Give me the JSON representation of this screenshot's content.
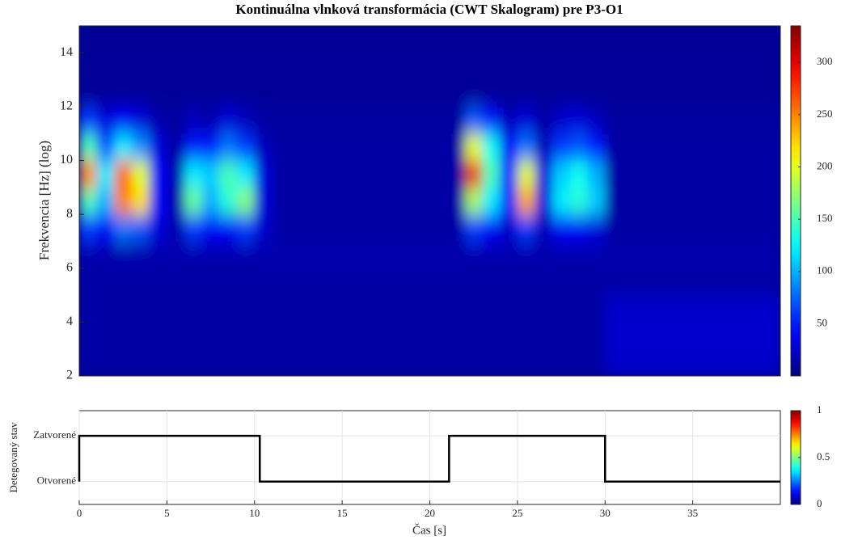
{
  "chart_data": [
    {
      "type": "heatmap",
      "title": "Kontinuálna vlnková transformácia (CWT Skalogram) pre P3-O1",
      "ylabel": "Frekvencia [Hz] (log)",
      "xbins": [
        0,
        1,
        2,
        3,
        4,
        5,
        6,
        7,
        8,
        9,
        10,
        11,
        12,
        13,
        14,
        15,
        16,
        17,
        18,
        19,
        20,
        21,
        22,
        23,
        24,
        25,
        26,
        27,
        28,
        29,
        30,
        31,
        32,
        33,
        34,
        35,
        36,
        37,
        38,
        39,
        40
      ],
      "ybins": [
        2,
        3,
        4,
        5,
        6,
        7,
        8,
        9,
        10,
        11,
        12,
        13,
        14,
        15
      ],
      "z": [
        [
          12,
          12,
          12,
          12,
          12,
          12,
          12,
          12,
          12,
          12,
          12,
          12,
          12,
          12,
          12,
          12,
          12,
          12,
          12,
          12,
          12,
          12,
          12,
          12,
          12,
          12,
          12,
          12,
          12,
          12,
          25,
          25,
          25,
          25,
          25,
          25,
          25,
          25,
          25,
          25
        ],
        [
          12,
          12,
          12,
          12,
          12,
          12,
          12,
          12,
          12,
          12,
          12,
          12,
          12,
          12,
          12,
          12,
          12,
          12,
          12,
          12,
          12,
          12,
          12,
          12,
          12,
          12,
          12,
          12,
          12,
          12,
          25,
          25,
          25,
          25,
          25,
          25,
          25,
          25,
          25,
          25
        ],
        [
          12,
          12,
          12,
          12,
          12,
          12,
          12,
          12,
          12,
          12,
          12,
          12,
          12,
          12,
          12,
          12,
          12,
          12,
          12,
          12,
          12,
          12,
          12,
          12,
          12,
          12,
          12,
          12,
          12,
          12,
          25,
          25,
          25,
          25,
          25,
          25,
          25,
          25,
          25,
          25
        ],
        [
          12,
          12,
          12,
          12,
          12,
          12,
          12,
          12,
          12,
          12,
          12,
          12,
          12,
          12,
          12,
          12,
          12,
          12,
          12,
          12,
          12,
          12,
          12,
          12,
          12,
          12,
          12,
          12,
          12,
          12,
          12,
          12,
          12,
          12,
          12,
          12,
          12,
          12,
          12,
          12
        ],
        [
          15,
          15,
          15,
          15,
          15,
          15,
          15,
          15,
          15,
          15,
          15,
          15,
          15,
          15,
          15,
          15,
          15,
          15,
          15,
          15,
          15,
          15,
          15,
          15,
          15,
          15,
          15,
          15,
          15,
          15,
          15,
          15,
          15,
          15,
          15,
          15,
          15,
          15,
          15,
          15
        ],
        [
          60,
          40,
          80,
          70,
          30,
          15,
          60,
          40,
          40,
          60,
          25,
          12,
          12,
          12,
          12,
          12,
          12,
          12,
          12,
          12,
          12,
          12,
          60,
          40,
          25,
          60,
          20,
          40,
          40,
          30,
          12,
          12,
          12,
          12,
          12,
          12,
          12,
          12,
          12,
          12
        ],
        [
          150,
          100,
          250,
          220,
          40,
          15,
          160,
          100,
          140,
          170,
          30,
          12,
          12,
          12,
          12,
          12,
          12,
          12,
          12,
          12,
          12,
          12,
          180,
          120,
          50,
          240,
          30,
          120,
          140,
          110,
          12,
          12,
          12,
          12,
          12,
          12,
          12,
          12,
          12,
          12
        ],
        [
          250,
          120,
          260,
          200,
          40,
          15,
          120,
          110,
          150,
          120,
          30,
          12,
          12,
          12,
          12,
          12,
          12,
          12,
          12,
          12,
          12,
          12,
          300,
          150,
          50,
          200,
          30,
          110,
          130,
          100,
          12,
          12,
          12,
          12,
          12,
          12,
          12,
          12,
          12,
          12
        ],
        [
          150,
          70,
          120,
          90,
          30,
          12,
          50,
          50,
          80,
          60,
          20,
          12,
          12,
          12,
          12,
          12,
          12,
          12,
          12,
          12,
          12,
          12,
          200,
          130,
          40,
          80,
          20,
          60,
          70,
          50,
          12,
          12,
          12,
          12,
          12,
          12,
          12,
          12,
          12,
          12
        ],
        [
          60,
          30,
          40,
          30,
          15,
          10,
          20,
          15,
          30,
          20,
          12,
          10,
          10,
          10,
          10,
          10,
          10,
          10,
          10,
          10,
          10,
          10,
          70,
          50,
          20,
          30,
          12,
          25,
          30,
          20,
          10,
          10,
          10,
          10,
          10,
          10,
          10,
          10,
          10,
          10
        ],
        [
          8,
          8,
          8,
          8,
          8,
          8,
          8,
          8,
          8,
          8,
          8,
          8,
          8,
          8,
          8,
          8,
          8,
          8,
          8,
          8,
          8,
          8,
          8,
          8,
          8,
          8,
          8,
          8,
          8,
          8,
          8,
          8,
          8,
          8,
          8,
          8,
          8,
          8,
          8,
          8
        ],
        [
          8,
          8,
          8,
          8,
          8,
          8,
          8,
          8,
          8,
          8,
          8,
          8,
          8,
          8,
          8,
          8,
          8,
          8,
          8,
          8,
          8,
          8,
          8,
          8,
          8,
          8,
          8,
          8,
          8,
          8,
          8,
          8,
          8,
          8,
          8,
          8,
          8,
          8,
          8,
          8
        ],
        [
          8,
          8,
          8,
          8,
          8,
          8,
          8,
          8,
          8,
          8,
          8,
          8,
          8,
          8,
          8,
          8,
          8,
          8,
          8,
          8,
          8,
          8,
          8,
          8,
          8,
          8,
          8,
          8,
          8,
          8,
          8,
          8,
          8,
          8,
          8,
          8,
          8,
          8,
          8,
          8
        ]
      ],
      "zlim": [
        0,
        335
      ],
      "colorbar_ticks": [
        50,
        100,
        150,
        200,
        250,
        300
      ],
      "xlim": [
        0,
        40
      ],
      "ylim": [
        2,
        15
      ],
      "yticks": [
        2,
        4,
        6,
        8,
        10,
        12,
        14
      ]
    },
    {
      "type": "line",
      "xlabel": "Čas [s]",
      "ylabel": "Detegovaný stav",
      "x": [
        0,
        0,
        10.3,
        10.3,
        21.1,
        21.1,
        30,
        30,
        40
      ],
      "series": [
        {
          "color": "#000000",
          "values": [
            0,
            1,
            1,
            0,
            0,
            1,
            1,
            0,
            0
          ]
        }
      ],
      "xlim": [
        0,
        40
      ],
      "xticks": [
        0,
        5,
        10,
        15,
        20,
        25,
        30,
        35
      ],
      "ylim": [
        -0.5,
        1.55
      ],
      "yticks": [
        {
          "value": 0,
          "label": "Otvorené"
        },
        {
          "value": 1,
          "label": "Zatvorené"
        }
      ],
      "grid": true,
      "zlim": [
        0,
        1
      ],
      "colorbar_ticks": [
        0,
        0.5,
        1
      ]
    }
  ]
}
